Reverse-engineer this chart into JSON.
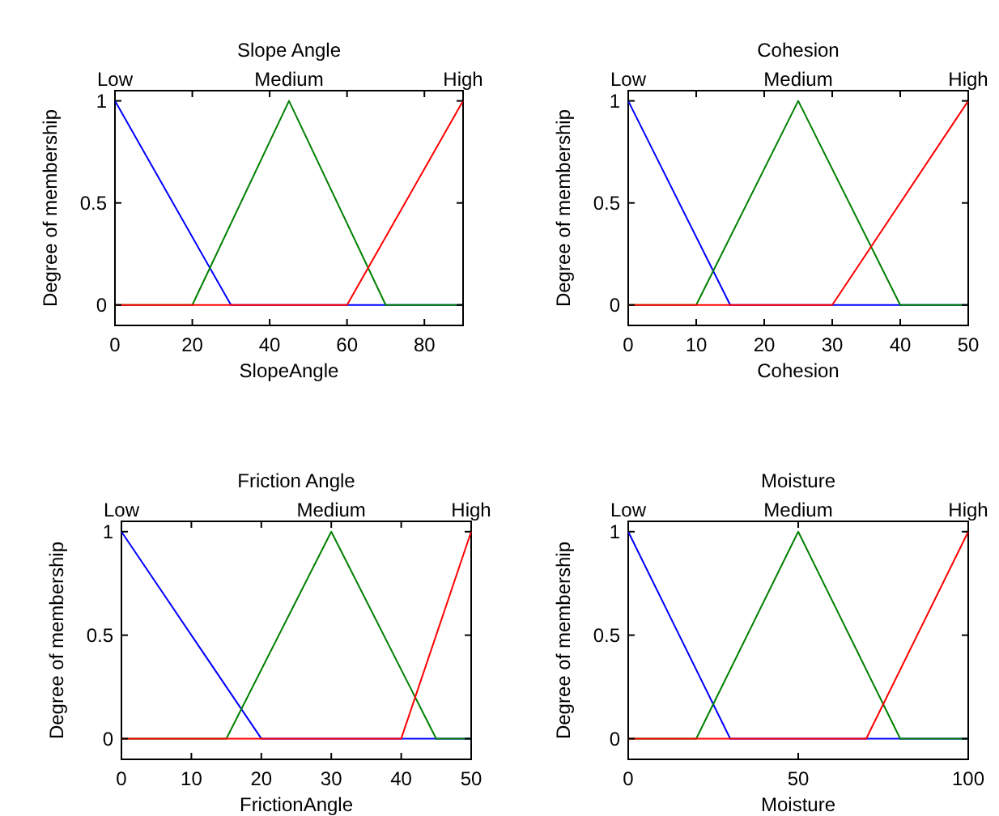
{
  "chart_data": [
    {
      "type": "line",
      "title": "Slope Angle",
      "xlabel": "SlopeAngle",
      "ylabel": "Degree of membership",
      "xlim": [
        0,
        90
      ],
      "xticks": [
        0,
        20,
        40,
        60,
        80
      ],
      "ylim": [
        -0.1,
        1.05
      ],
      "yticks": [
        0,
        0.5,
        1
      ],
      "series": [
        {
          "name": "Low",
          "color": "#0000ff",
          "x": [
            0,
            30,
            90
          ],
          "values": [
            1,
            0,
            0
          ]
        },
        {
          "name": "Medium",
          "color": "#008000",
          "x": [
            0,
            20,
            45,
            70,
            90
          ],
          "values": [
            0,
            0,
            1,
            0,
            0
          ]
        },
        {
          "name": "High",
          "color": "#ff0000",
          "x": [
            0,
            60,
            90
          ],
          "values": [
            0,
            0,
            1
          ]
        }
      ]
    },
    {
      "type": "line",
      "title": "Cohesion",
      "xlabel": "Cohesion",
      "ylabel": "Degree of membership",
      "xlim": [
        0,
        50
      ],
      "xticks": [
        0,
        10,
        20,
        30,
        40,
        50
      ],
      "ylim": [
        -0.1,
        1.05
      ],
      "yticks": [
        0,
        0.5,
        1
      ],
      "series": [
        {
          "name": "Low",
          "color": "#0000ff",
          "x": [
            0,
            15,
            50
          ],
          "values": [
            1,
            0,
            0
          ]
        },
        {
          "name": "Medium",
          "color": "#008000",
          "x": [
            0,
            10,
            25,
            40,
            50
          ],
          "values": [
            0,
            0,
            1,
            0,
            0
          ]
        },
        {
          "name": "High",
          "color": "#ff0000",
          "x": [
            0,
            30,
            50
          ],
          "values": [
            0,
            0,
            1
          ]
        }
      ]
    },
    {
      "type": "line",
      "title": "Friction Angle",
      "xlabel": "FrictionAngle",
      "ylabel": "Degree of membership",
      "xlim": [
        0,
        50
      ],
      "xticks": [
        0,
        10,
        20,
        30,
        40,
        50
      ],
      "ylim": [
        -0.1,
        1.05
      ],
      "yticks": [
        0,
        0.5,
        1
      ],
      "series": [
        {
          "name": "Low",
          "color": "#0000ff",
          "x": [
            0,
            20,
            50
          ],
          "values": [
            1,
            0,
            0
          ]
        },
        {
          "name": "Medium",
          "color": "#008000",
          "x": [
            0,
            15,
            30,
            45,
            50
          ],
          "values": [
            0,
            0,
            1,
            0,
            0
          ]
        },
        {
          "name": "High",
          "color": "#ff0000",
          "x": [
            0,
            40,
            50
          ],
          "values": [
            0,
            0,
            1
          ]
        }
      ]
    },
    {
      "type": "line",
      "title": "Moisture",
      "xlabel": "Moisture",
      "ylabel": "Degree of membership",
      "xlim": [
        0,
        100
      ],
      "xticks": [
        0,
        50,
        100
      ],
      "ylim": [
        -0.1,
        1.05
      ],
      "yticks": [
        0,
        0.5,
        1
      ],
      "series": [
        {
          "name": "Low",
          "color": "#0000ff",
          "x": [
            0,
            30,
            100
          ],
          "values": [
            1,
            0,
            0
          ]
        },
        {
          "name": "Medium",
          "color": "#008000",
          "x": [
            0,
            20,
            50,
            80,
            100
          ],
          "values": [
            0,
            0,
            1,
            0,
            0
          ]
        },
        {
          "name": "High",
          "color": "#ff0000",
          "x": [
            0,
            70,
            100
          ],
          "values": [
            0,
            0,
            1
          ]
        }
      ]
    }
  ]
}
